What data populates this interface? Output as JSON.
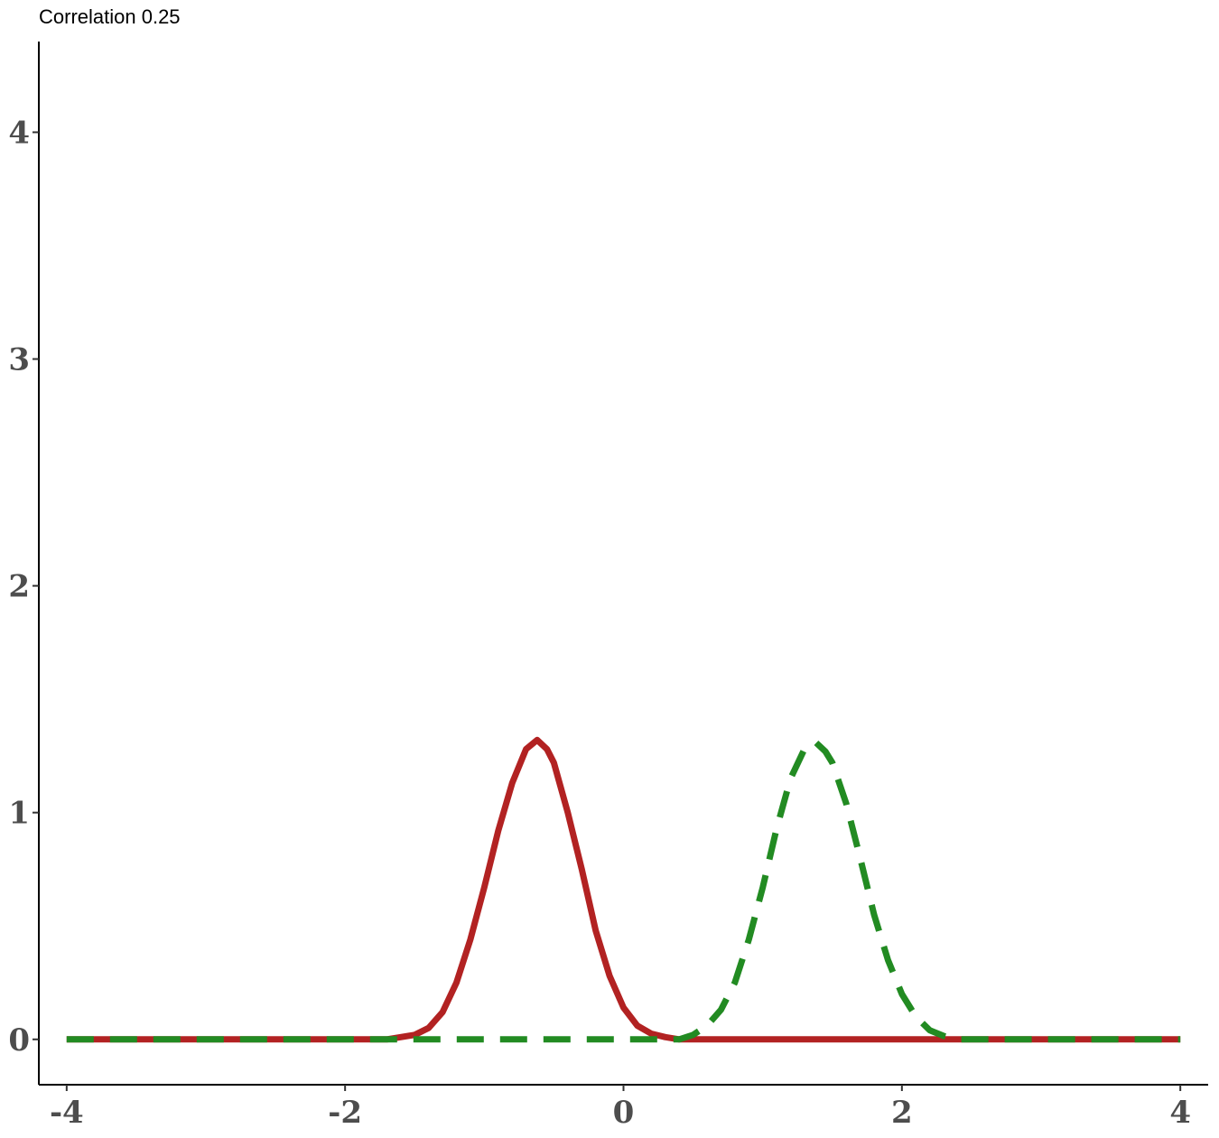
{
  "chart_data": {
    "type": "line",
    "title": "Correlation 0.25",
    "xlabel": "",
    "ylabel": "",
    "xlim": [
      -4.2,
      4.2
    ],
    "ylim": [
      -0.2,
      4.4
    ],
    "x_ticks": [
      -4,
      -2,
      0,
      2,
      4
    ],
    "y_ticks": [
      0,
      1,
      2,
      3,
      4
    ],
    "x_tick_labels": [
      "-4",
      "-2",
      "0",
      "2",
      "4"
    ],
    "y_tick_labels": [
      "0",
      "1",
      "2",
      "3",
      "4"
    ],
    "grid": false,
    "legend": "none",
    "series": [
      {
        "color": "#b22222",
        "line_style": "solid",
        "points": [
          [
            -4.0,
            0.0
          ],
          [
            -1.7,
            0.0
          ],
          [
            -1.6,
            0.01
          ],
          [
            -1.5,
            0.02
          ],
          [
            -1.4,
            0.05
          ],
          [
            -1.3,
            0.12
          ],
          [
            -1.2,
            0.25
          ],
          [
            -1.1,
            0.44
          ],
          [
            -1.0,
            0.67
          ],
          [
            -0.9,
            0.92
          ],
          [
            -0.8,
            1.13
          ],
          [
            -0.7,
            1.28
          ],
          [
            -0.62,
            1.32
          ],
          [
            -0.55,
            1.28
          ],
          [
            -0.5,
            1.22
          ],
          [
            -0.4,
            1.0
          ],
          [
            -0.3,
            0.75
          ],
          [
            -0.2,
            0.48
          ],
          [
            -0.1,
            0.28
          ],
          [
            0.0,
            0.14
          ],
          [
            0.1,
            0.06
          ],
          [
            0.2,
            0.025
          ],
          [
            0.3,
            0.01
          ],
          [
            0.4,
            0.0
          ],
          [
            4.0,
            0.0
          ]
        ]
      },
      {
        "color": "#228b22",
        "line_style": "dashed",
        "points": [
          [
            -4.0,
            0.0
          ],
          [
            0.4,
            0.0
          ],
          [
            0.5,
            0.02
          ],
          [
            0.6,
            0.06
          ],
          [
            0.7,
            0.13
          ],
          [
            0.8,
            0.25
          ],
          [
            0.9,
            0.44
          ],
          [
            1.0,
            0.67
          ],
          [
            1.1,
            0.93
          ],
          [
            1.2,
            1.15
          ],
          [
            1.3,
            1.28
          ],
          [
            1.38,
            1.31
          ],
          [
            1.45,
            1.27
          ],
          [
            1.5,
            1.22
          ],
          [
            1.6,
            1.04
          ],
          [
            1.7,
            0.8
          ],
          [
            1.8,
            0.55
          ],
          [
            1.9,
            0.35
          ],
          [
            2.0,
            0.2
          ],
          [
            2.1,
            0.1
          ],
          [
            2.2,
            0.04
          ],
          [
            2.3,
            0.015
          ],
          [
            2.4,
            0.0
          ],
          [
            4.0,
            0.0
          ]
        ]
      }
    ]
  }
}
